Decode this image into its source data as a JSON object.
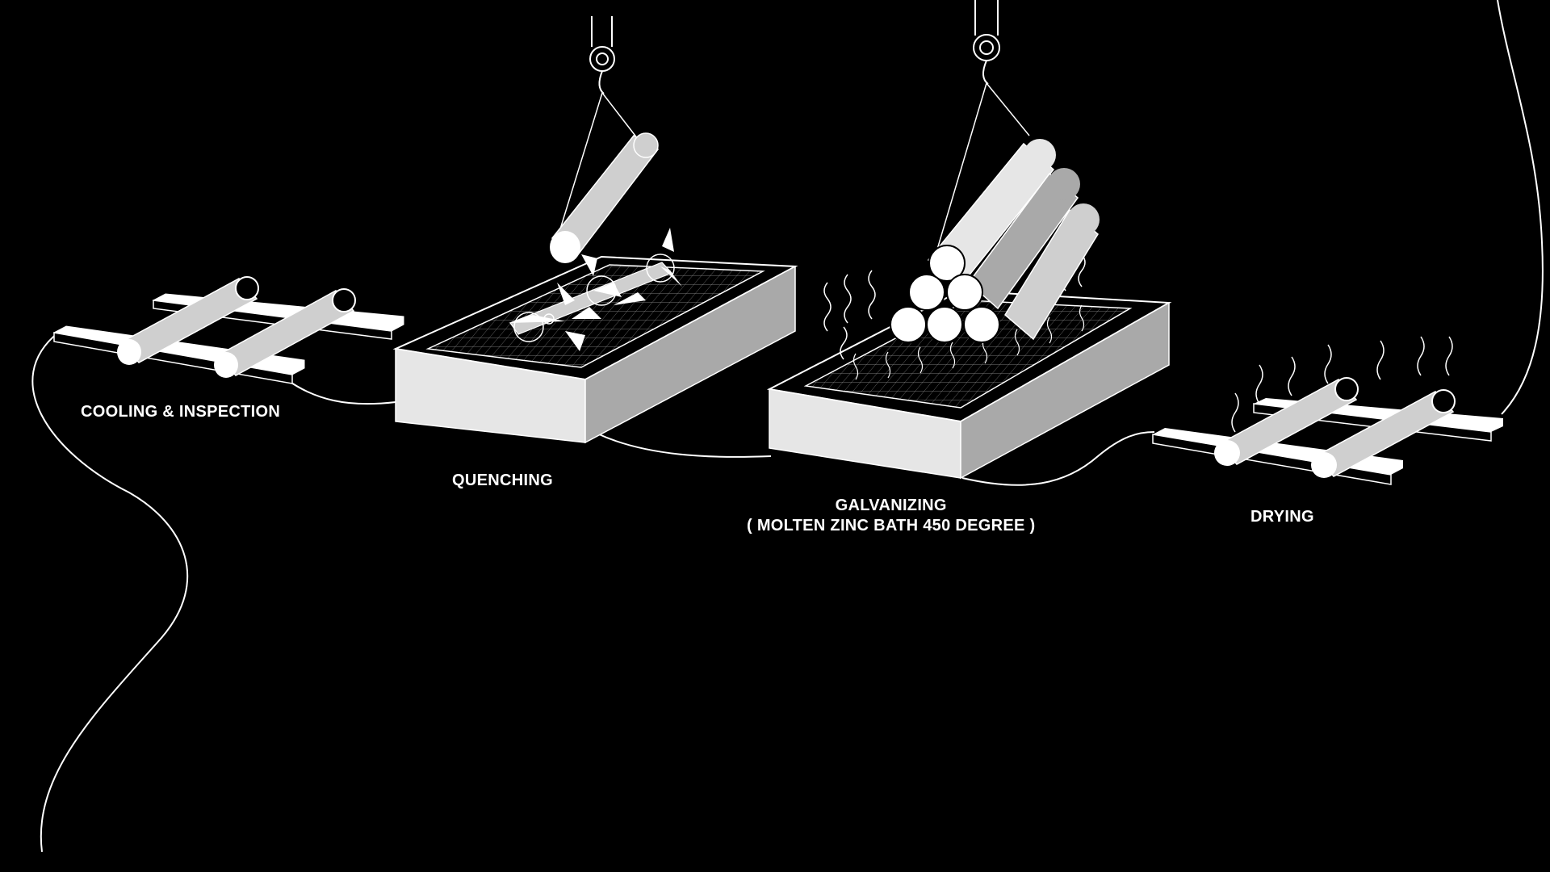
{
  "colors": {
    "background": "#000000",
    "stroke": "#ffffff",
    "fill_light": "#e6e6e6",
    "fill_mid": "#cfcfcf",
    "fill_dark": "#a9a9a9"
  },
  "stages": [
    {
      "id": "cooling",
      "label": "COOLING & INSPECTION"
    },
    {
      "id": "quenching",
      "label": "QUENCHING"
    },
    {
      "id": "galvanizing",
      "label": "GALVANIZING",
      "sublabel": "( MOLTEN ZINC BATH 450 DEGREE )"
    },
    {
      "id": "drying",
      "label": "DRYING"
    }
  ],
  "icons": {
    "crane": "crane-hook-icon",
    "pipe": "pipe-icon",
    "rack": "rack-icon",
    "tank": "tank-icon",
    "steam": "steam-icon",
    "splash": "splash-icon"
  }
}
